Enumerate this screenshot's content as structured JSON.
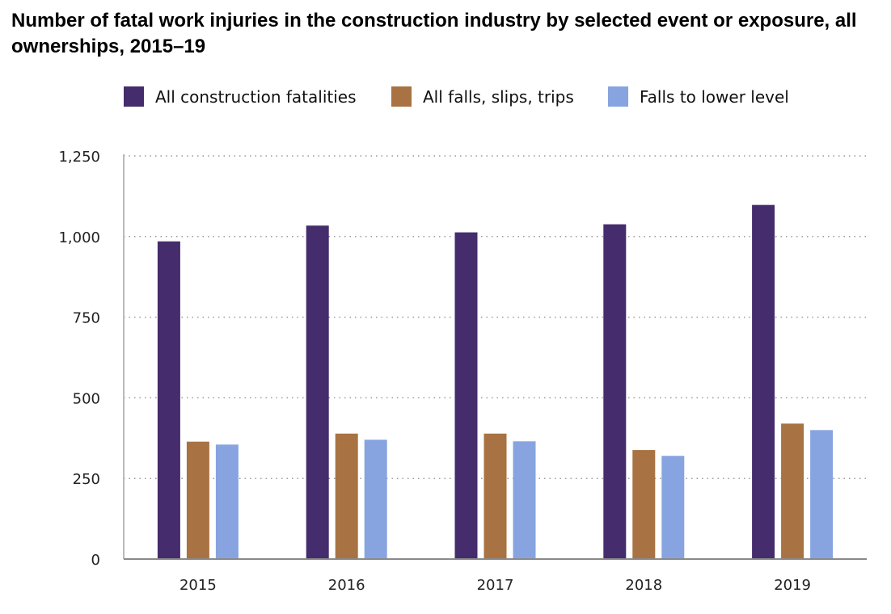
{
  "chart_data": {
    "type": "bar",
    "title": "Number of fatal work injuries in the construction industry by selected event or exposure, all ownerships, 2015–19",
    "xlabel": "",
    "ylabel": "",
    "categories": [
      "2015",
      "2016",
      "2017",
      "2018",
      "2019"
    ],
    "series": [
      {
        "name": "All construction fatalities",
        "color": "#452c6c",
        "values": [
          985,
          1034,
          1013,
          1038,
          1098
        ]
      },
      {
        "name": "All falls, slips, trips",
        "color": "#a87242",
        "values": [
          364,
          389,
          389,
          338,
          420
        ]
      },
      {
        "name": "Falls to lower level",
        "color": "#87a4e0",
        "values": [
          355,
          370,
          365,
          320,
          400
        ]
      }
    ],
    "ylim": [
      0,
      1250
    ],
    "yticks": [
      0,
      250,
      500,
      750,
      1000,
      1250
    ],
    "ytick_labels": [
      "0",
      "250",
      "500",
      "750",
      "1,000",
      "1,250"
    ],
    "grid": true,
    "legend_position": "top"
  }
}
